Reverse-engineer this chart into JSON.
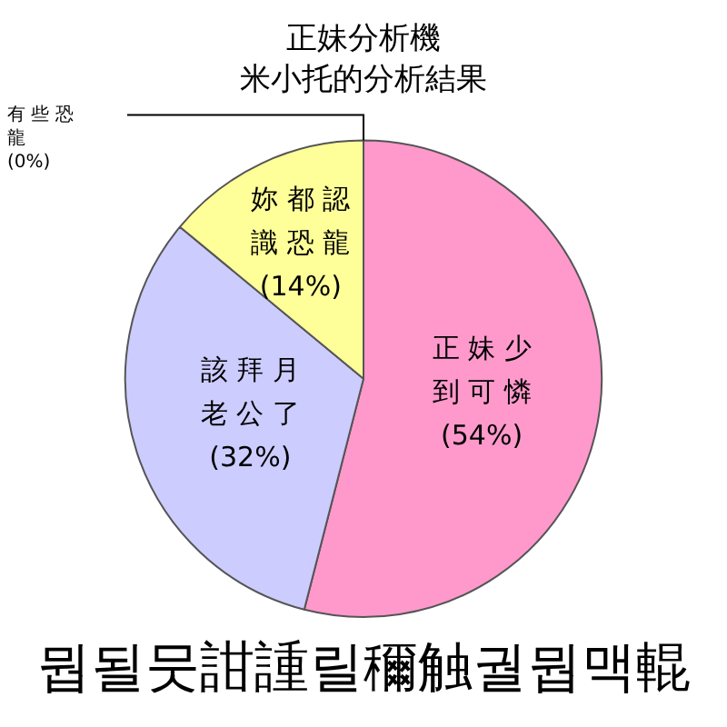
{
  "chart_data": {
    "type": "pie",
    "title": "正妹分析機",
    "subtitle": "米小托的分析結果",
    "categories": [
      "正妹少到可憐",
      "該拜月老公了",
      "妳都認識恐龍",
      "有些恐龍"
    ],
    "values": [
      54,
      32,
      14,
      0
    ],
    "value_labels": [
      "(54%)",
      "(32%)",
      "(14%)",
      "(0%)"
    ],
    "colors": [
      "#ff99cc",
      "#ccccff",
      "#ffff99",
      "#ffffff"
    ],
    "legend": false,
    "annotations": [
      "뭡될뭇詌諥릴穪触궐뭡맥輥"
    ]
  }
}
